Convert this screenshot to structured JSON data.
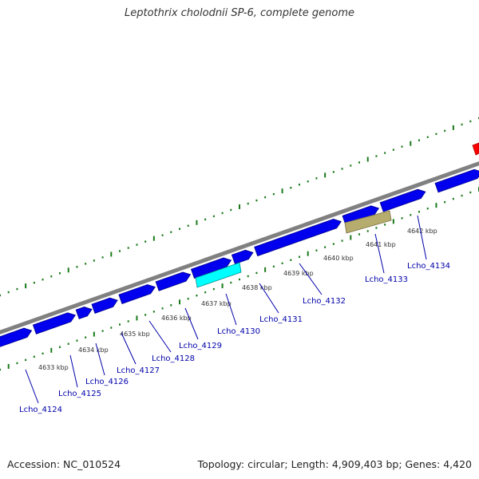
{
  "title": "Leptothrix cholodnii SP-6, complete genome",
  "footer": {
    "accession": "Accession: NC_010524",
    "summary": "Topology: circular; Length: 4,909,403 bp; Genes: 4,420"
  },
  "colors": {
    "backbone": "#808080",
    "gene_forward": "#0000ee",
    "gene_highlight_cyan": "#00ffff",
    "gene_highlight_olive": "#b5ac6e",
    "gene_red": "#ff0000",
    "tick": "#1a7a1a",
    "label": "#0000aa"
  },
  "scale": {
    "unit": "kbp",
    "labels": [
      "4633 kbp",
      "4634 kbp",
      "4635 kbp",
      "4636 kbp",
      "4637 kbp",
      "4638 kbp",
      "4639 kbp",
      "4640 kbp",
      "4641 kbp",
      "4642 kbp"
    ]
  },
  "genes": [
    "Lcho_4124",
    "Lcho_4125",
    "Lcho_4126",
    "Lcho_4127",
    "Lcho_4128",
    "Lcho_4129",
    "Lcho_4130",
    "Lcho_4131",
    "Lcho_4132",
    "Lcho_4133",
    "Lcho_4134"
  ]
}
